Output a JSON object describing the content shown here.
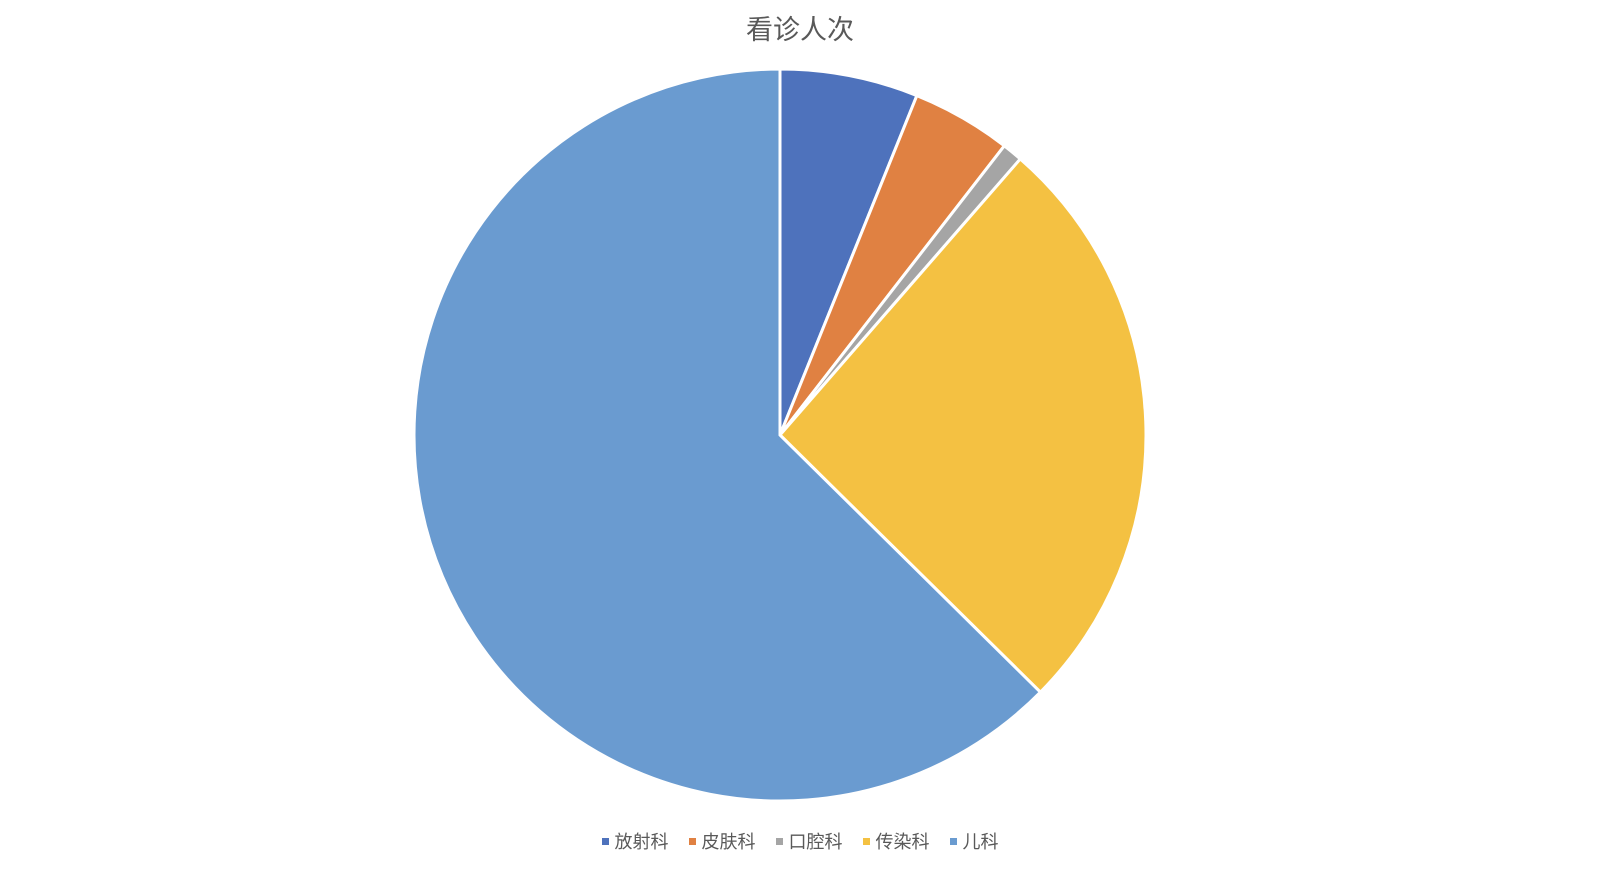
{
  "chart_data": {
    "type": "pie",
    "title": "看诊人次",
    "categories": [
      "放射科",
      "皮肤科",
      "口腔科",
      "传染科",
      "儿科"
    ],
    "values": [
      6.1,
      4.4,
      0.9,
      26.0,
      62.6
    ],
    "colors": [
      "#4e72bc",
      "#e08142",
      "#a5a5a5",
      "#f4c142",
      "#6a9bd0"
    ],
    "legend_position": "bottom"
  }
}
